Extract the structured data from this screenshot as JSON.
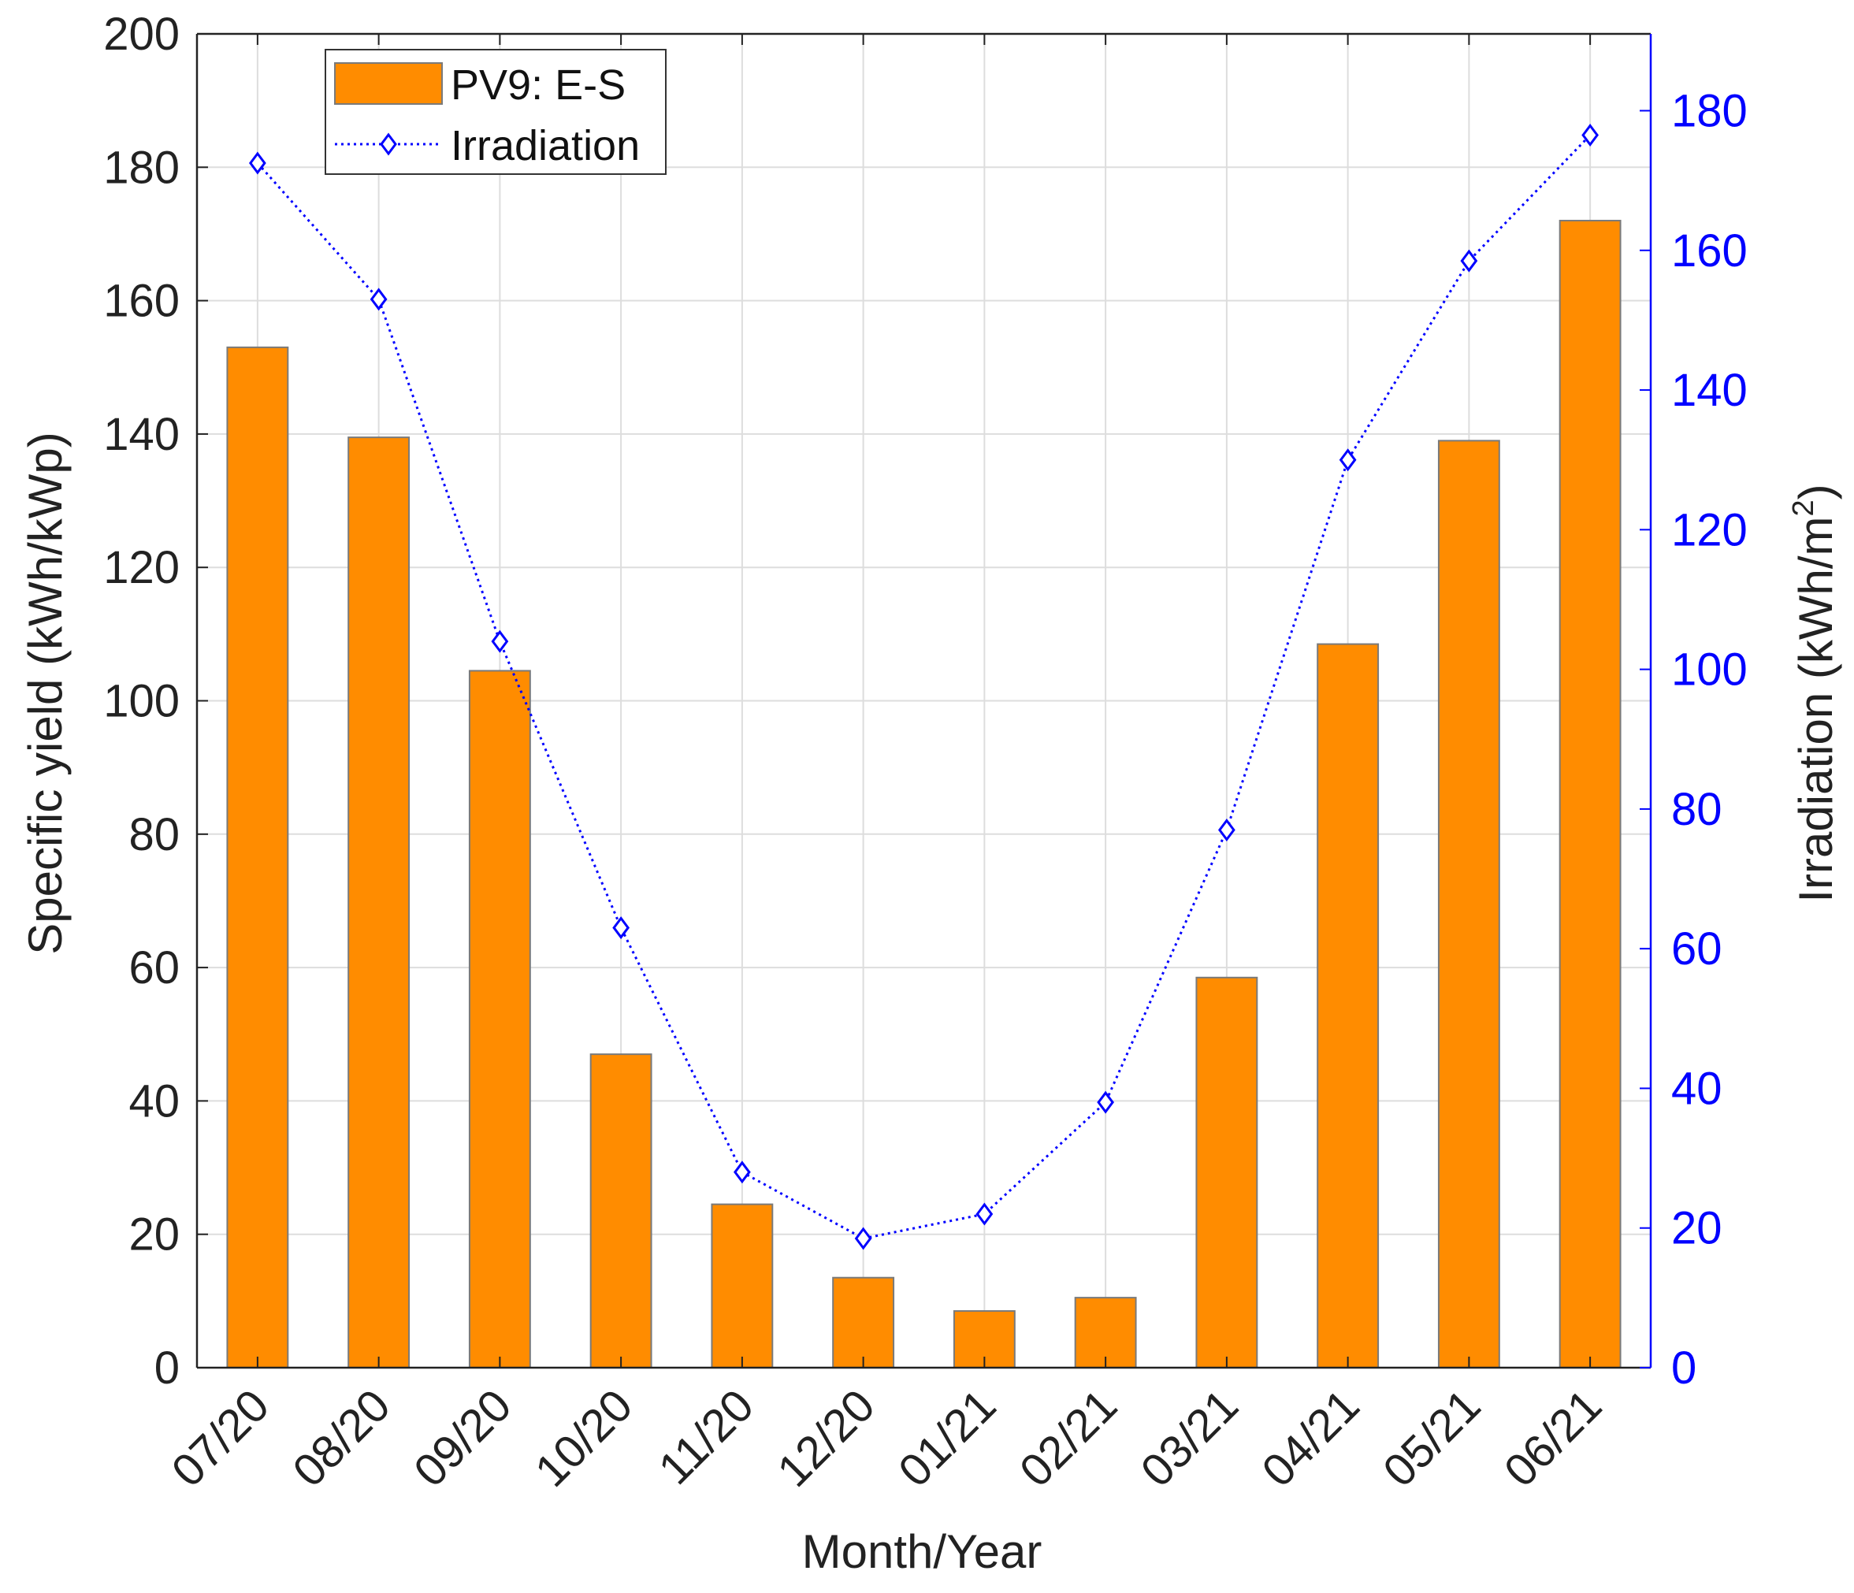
{
  "chart_data": {
    "type": "bar",
    "categories": [
      "07/20",
      "08/20",
      "09/20",
      "10/20",
      "11/20",
      "12/20",
      "01/21",
      "02/21",
      "03/21",
      "04/21",
      "05/21",
      "06/21"
    ],
    "series": [
      {
        "name": "PV9: E-S",
        "type": "bar",
        "axis": "left",
        "color": "#ff8c00",
        "values": [
          153,
          139.5,
          104.5,
          47,
          24.5,
          13.5,
          8.5,
          10.5,
          58.5,
          108.5,
          139,
          172
        ]
      },
      {
        "name": "Irradiation",
        "type": "line",
        "axis": "right",
        "color": "#0000ff",
        "marker": "diamond",
        "values": [
          172.5,
          153,
          104,
          63,
          28,
          18.5,
          22,
          38,
          77,
          130,
          158.5,
          176.5
        ]
      }
    ],
    "title": "",
    "xlabel": "Month/Year",
    "ylabel_left": "Specific yield (kWh/kWp)",
    "ylabel_right_main": "Irradiation (kWh/m",
    "ylabel_right_sup": "2",
    "ylabel_right_close": ")",
    "ylim_left": [
      0,
      200
    ],
    "ylim_right": [
      0,
      191
    ],
    "yticks_left": [
      0,
      20,
      40,
      60,
      80,
      100,
      120,
      140,
      160,
      180,
      200
    ],
    "yticks_right": [
      0,
      20,
      40,
      60,
      80,
      100,
      120,
      140,
      160,
      180
    ],
    "grid": true,
    "legend_position": "top-left",
    "colors": {
      "axis_left": "#222222",
      "axis_right": "#0000ff",
      "grid": "#dddddd"
    }
  }
}
